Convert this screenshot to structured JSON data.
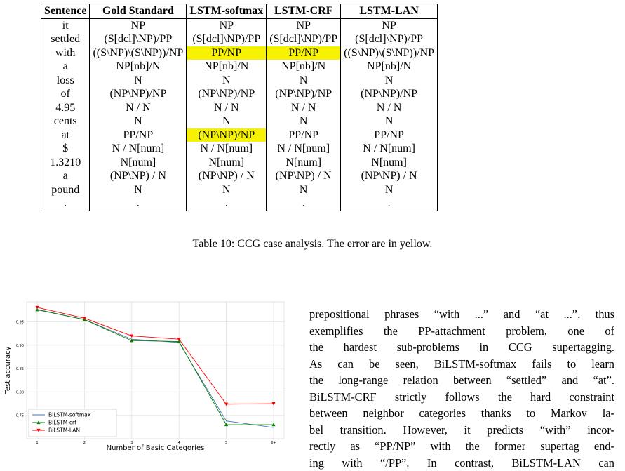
{
  "table": {
    "header": [
      "Sentence",
      "Gold Standard",
      "LSTM-softmax",
      "LSTM-CRF",
      "LSTM-LAN"
    ],
    "rows": [
      [
        "it",
        "NP",
        "NP",
        "NP",
        "NP"
      ],
      [
        "settled",
        "(S[dcl]\\NP)/PP",
        "(S[dcl]\\NP)/PP",
        "(S[dcl]\\NP)/PP",
        "(S[dcl]\\NP)/PP"
      ],
      [
        "with",
        "((S\\NP)\\(S\\NP))/NP",
        "PP/NP",
        "PP/NP",
        "((S\\NP)\\(S\\NP))/NP"
      ],
      [
        "a",
        "NP[nb]/N",
        "NP[nb]/N",
        "NP[nb]/N",
        "NP[nb]/N"
      ],
      [
        "loss",
        "N",
        "N",
        "N",
        "N"
      ],
      [
        "of",
        "(NP\\NP)/NP",
        "(NP\\NP)/NP",
        "(NP\\NP)/NP",
        "(NP\\NP)/NP"
      ],
      [
        "4.95",
        "N / N",
        "N / N",
        "N / N",
        "N / N"
      ],
      [
        "cents",
        "N",
        "N",
        "N",
        "N"
      ],
      [
        "at",
        "PP/NP",
        "(NP\\NP)/NP",
        "PP/NP",
        "PP/NP"
      ],
      [
        "$",
        "N / N[num]",
        "N / N[num]",
        "N / N[num]",
        "N / N[num]"
      ],
      [
        "1.3210",
        "N[num]",
        "N[num]",
        "N[num]",
        "N[num]"
      ],
      [
        "a",
        "(NP\\NP) / N",
        "(NP\\NP) / N",
        "(NP\\NP) / N",
        "(NP\\NP) / N"
      ],
      [
        "pound",
        "N",
        "N",
        "N",
        "N"
      ],
      [
        ".",
        ".",
        ".",
        ".",
        "."
      ]
    ],
    "highlight_color": "#f7f200",
    "highlighted_cells": [
      [
        2,
        2
      ],
      [
        2,
        3
      ],
      [
        8,
        2
      ]
    ]
  },
  "caption": "Table 10:  CCG case analysis. The error are in yellow.",
  "chart_data": {
    "type": "line",
    "xlabel": "Number of Basic Categories",
    "ylabel": "Test accuracy",
    "categories": [
      "1",
      "2",
      "3",
      "4",
      "5",
      "6+"
    ],
    "series": [
      {
        "name": "BiLSTM-softmax",
        "color": "#4c72b0",
        "marker": "none",
        "values": [
          0.977,
          0.955,
          0.913,
          0.906,
          0.738,
          0.724
        ]
      },
      {
        "name": "BiLSTM-crf",
        "color": "#008000",
        "marker": "triangle-up",
        "values": [
          0.976,
          0.955,
          0.91,
          0.908,
          0.73,
          0.73
        ]
      },
      {
        "name": "BiLSTM-LAN",
        "color": "#ff0000",
        "marker": "triangle-down",
        "values": [
          0.981,
          0.958,
          0.92,
          0.913,
          0.774,
          0.775
        ]
      }
    ],
    "ylim": [
      0.7,
      0.993
    ],
    "yticks": [
      0.75,
      {
        "value": 0.8,
        "label": "0.80"
      },
      0.85,
      {
        "value": 0.9,
        "label": "0.90"
      },
      0.95
    ],
    "grid": true,
    "legend": "lower left"
  },
  "paragraph": {
    "lines": [
      "prepositional phrases “with ...”  and “at ...”, thus",
      "exemplifies the PP-attachment problem, one of",
      "the hardest sub-problems in CCG supertagging.",
      "As can be seen, BiLSTM-softmax fails to learn",
      "the long-range relation between “settled” and “at”.",
      "BiLSTM-CRF strictly follows the hard constraint",
      "between neighbor categories thanks to Markov la-",
      "bel transition.  However, it predicts “with” incor-",
      "rectly as “PP/NP” with the former supertag end-",
      "ing with “/PP”.  In contrast, BiLSTM-LAN can"
    ]
  }
}
